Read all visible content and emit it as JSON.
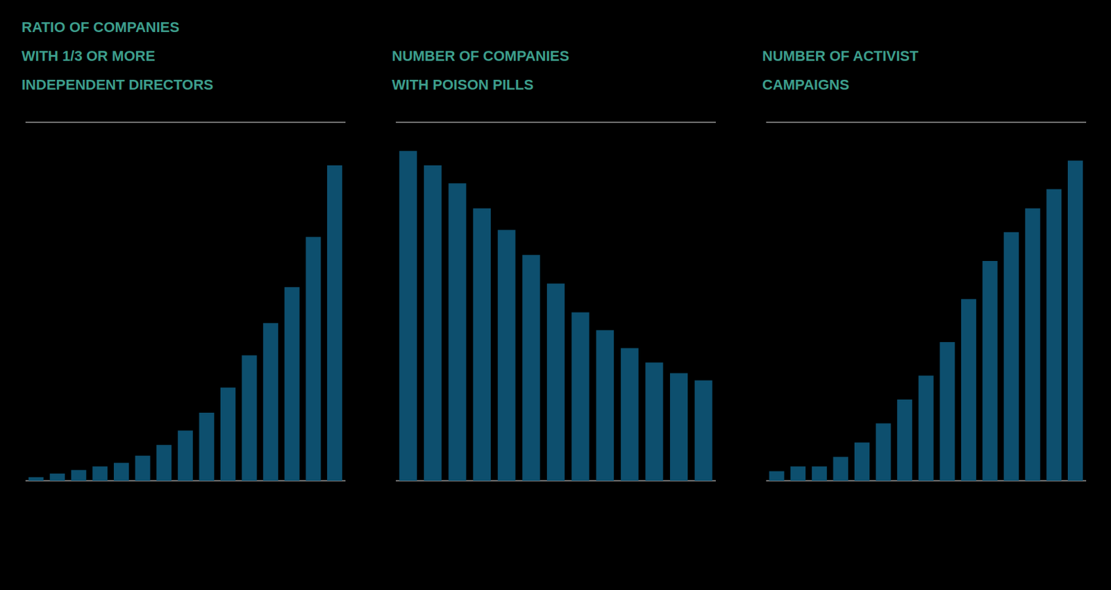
{
  "chart_data": [
    {
      "type": "bar",
      "title": "RATIO OF COMPANIES\nWITH 1/3 OR MORE\nINDEPENDENT DIRECTORS",
      "categories": [
        null,
        null,
        null,
        null,
        null,
        null,
        null,
        null,
        null,
        null,
        null,
        null,
        null,
        null,
        null
      ],
      "values": [
        1,
        2,
        3,
        4,
        5,
        7,
        10,
        14,
        19,
        26,
        35,
        44,
        54,
        68,
        88
      ],
      "color": "#0d4f6e",
      "ylim": [
        0,
        100
      ],
      "yticks": [
        0,
        20,
        40,
        60,
        80,
        100
      ],
      "grid": true,
      "tick_labels": false
    },
    {
      "type": "bar",
      "title": "NUMBER OF COMPANIES\nWITH POISON PILLS",
      "categories": [
        null,
        null,
        null,
        null,
        null,
        null,
        null,
        null,
        null,
        null,
        null,
        null,
        null
      ],
      "values": [
        92,
        88,
        83,
        76,
        70,
        63,
        55,
        47,
        42,
        37,
        33,
        30,
        28
      ],
      "color": "#0d4f6e",
      "ylim": [
        0,
        100
      ],
      "yticks": [
        0,
        25,
        50,
        75,
        100
      ],
      "grid": true,
      "tick_labels": false
    },
    {
      "type": "bar",
      "title": "NUMBER OF ACTIVIST\nCAMPAIGNS",
      "categories": [
        null,
        null,
        null,
        null,
        null,
        null,
        null,
        null,
        null,
        null,
        null,
        null,
        null,
        null,
        null
      ],
      "values": [
        2,
        3,
        3,
        5,
        8,
        12,
        17,
        22,
        29,
        38,
        46,
        52,
        57,
        61,
        67
      ],
      "color": "#0d4f6e",
      "ylim": [
        0,
        75
      ],
      "yticks": [
        0,
        18.75,
        37.5,
        56.25,
        75
      ],
      "grid": true,
      "tick_labels": false
    }
  ]
}
